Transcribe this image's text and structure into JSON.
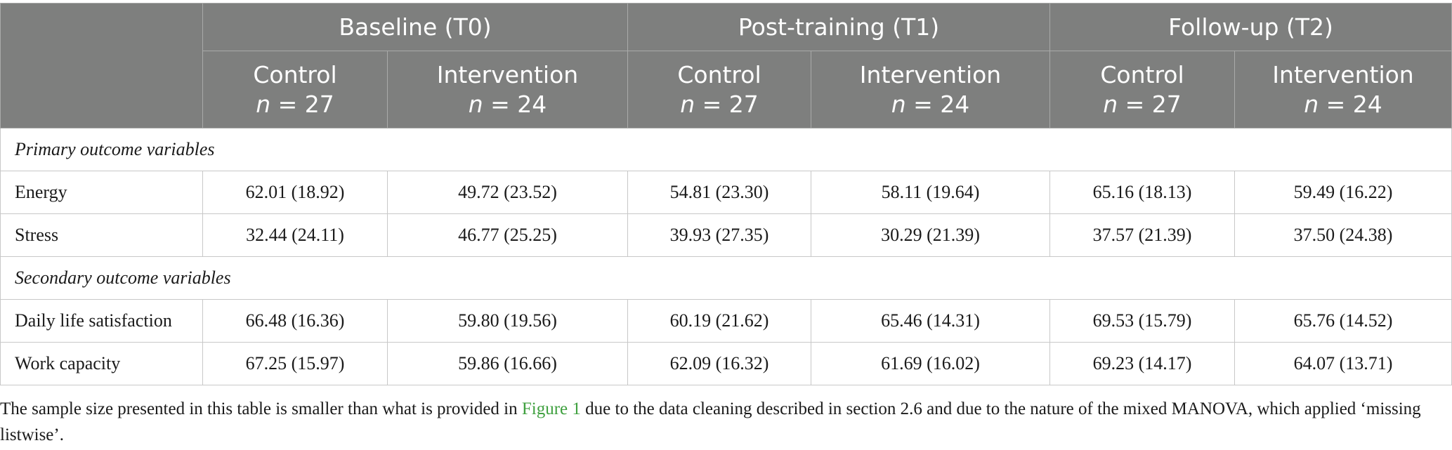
{
  "table": {
    "groups": [
      "Baseline (T0)",
      "Post-training (T1)",
      "Follow-up (T2)"
    ],
    "subheaders": [
      {
        "label": "Control",
        "n_prefix": "n",
        "n_value": " = 27"
      },
      {
        "label": "Intervention",
        "n_prefix": "n",
        "n_value": " = 24"
      },
      {
        "label": "Control",
        "n_prefix": "n",
        "n_value": " = 27"
      },
      {
        "label": "Intervention",
        "n_prefix": "n",
        "n_value": " = 24"
      },
      {
        "label": "Control",
        "n_prefix": "n",
        "n_value": " = 27"
      },
      {
        "label": "Intervention",
        "n_prefix": "n",
        "n_value": " = 24"
      }
    ],
    "sections": [
      {
        "title": "Primary outcome variables",
        "rows": [
          {
            "label": "Energy",
            "values": [
              "62.01 (18.92)",
              "49.72 (23.52)",
              "54.81 (23.30)",
              "58.11 (19.64)",
              "65.16 (18.13)",
              "59.49 (16.22)"
            ]
          },
          {
            "label": "Stress",
            "values": [
              "32.44 (24.11)",
              "46.77 (25.25)",
              "39.93 (27.35)",
              "30.29 (21.39)",
              "37.57 (21.39)",
              "37.50 (24.38)"
            ]
          }
        ]
      },
      {
        "title": "Secondary outcome variables",
        "rows": [
          {
            "label": "Daily life satisfaction",
            "values": [
              "66.48 (16.36)",
              "59.80 (19.56)",
              "60.19 (21.62)",
              "65.46 (14.31)",
              "69.53 (15.79)",
              "65.76 (14.52)"
            ]
          },
          {
            "label": "Work capacity",
            "values": [
              "67.25 (15.97)",
              "59.86 (16.66)",
              "62.09 (16.32)",
              "61.69 (16.02)",
              "69.23 (14.17)",
              "64.07 (13.71)"
            ]
          }
        ]
      }
    ]
  },
  "footnote": {
    "before_link": "The sample size presented in this table is smaller than what is provided in ",
    "link_text": "Figure 1",
    "after_link": " due to the data cleaning described in section 2.6 and due to the nature of the mixed MANOVA, which applied ‘missing listwise’."
  },
  "colors": {
    "header_bg": "#7e7f7e",
    "header_text": "#ffffff",
    "grid": "#c8c8c8",
    "link": "#3fa03f"
  }
}
